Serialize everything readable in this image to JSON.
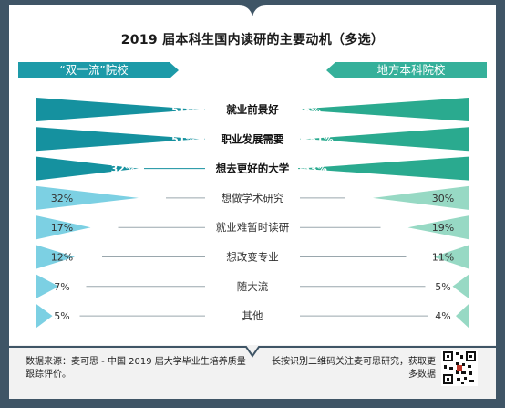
{
  "title": "2019 届本科生国内读研的主要动机（多选）",
  "left_header": "“双一流”院校",
  "right_header": "地方本科院校",
  "colors": {
    "frame": "#3f5566",
    "header_left": "#1d9aa8",
    "header_right": "#35b09a",
    "left_dark": "#15919f",
    "left_light": "#7cd0e3",
    "right_dark": "#2aaa8f",
    "right_light": "#97d9c4",
    "label_on_dark": "#ffffff",
    "label_on_light": "#333333",
    "bold_text": "#111111"
  },
  "chart_data": {
    "type": "bar",
    "orientation": "horizontal-diverging",
    "categories": [
      "就业前景好",
      "职业发展需要",
      "想去更好的大学",
      "想做学术研究",
      "就业难暂时读研",
      "想改变专业",
      "随大流",
      "其他"
    ],
    "series": [
      {
        "name": "“双一流”院校",
        "values": [
          51,
          51,
          32,
          32,
          17,
          12,
          7,
          5
        ],
        "labels": [
          "51%",
          "51%",
          "32%",
          "32%",
          "17%",
          "12%",
          "7%",
          "5%"
        ]
      },
      {
        "name": "地方本科院校",
        "values": [
          55,
          51,
          53,
          30,
          19,
          11,
          5,
          4
        ],
        "labels": [
          "55%",
          "51%",
          "53%",
          "30%",
          "19%",
          "11%",
          "5%",
          "4%"
        ]
      }
    ],
    "highlighted_rows": 3,
    "unit": "%"
  },
  "footer": {
    "source": "数据来源：麦可思 - 中国 2019 届大学毕业生培养质量跟踪评价。",
    "qr_note": "长按识别二维码关注麦可思研究，获取更多数据"
  }
}
